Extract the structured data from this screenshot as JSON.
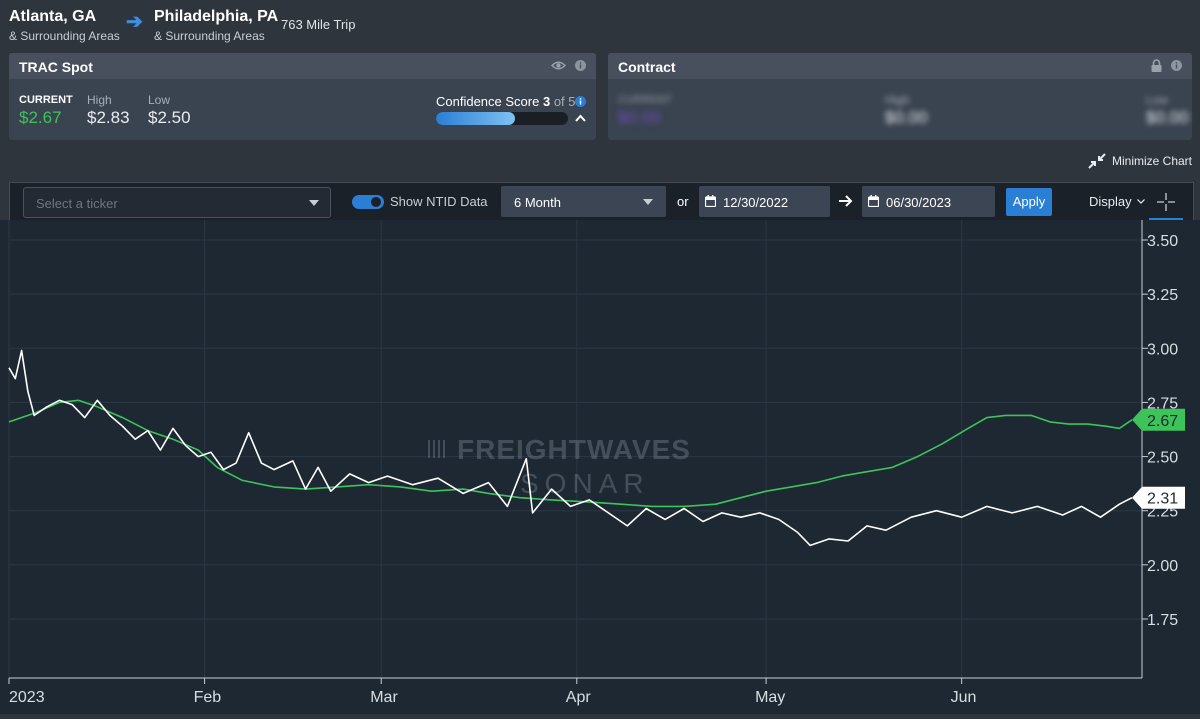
{
  "route": {
    "origin": "Atlanta, GA",
    "origin_sub": "& Surrounding Areas",
    "destination": "Philadelphia, PA",
    "destination_sub": "& Surrounding Areas",
    "trip": "763 Mile Trip"
  },
  "trac_spot": {
    "title": "TRAC Spot",
    "current_label": "CURRENT",
    "current": "$2.67",
    "high_label": "High",
    "high": "$2.83",
    "low_label": "Low",
    "low": "$2.50",
    "confidence_label": "Confidence Score",
    "confidence_score": "3",
    "confidence_of": "of 5",
    "confidence_fraction": 0.6
  },
  "contract": {
    "title": "Contract",
    "current_label": "CURRENT",
    "current": "$0.00",
    "high_label": "High",
    "high": "$0.00",
    "low_label": "Low",
    "low": "$0.00"
  },
  "minimize_label": "Minimize Chart",
  "controls": {
    "ticker_placeholder": "Select a ticker",
    "ntid_label": "Show NTID Data",
    "ntid_on": true,
    "range": "6 Month",
    "or": "or",
    "start_date": "12/30/2022",
    "end_date": "06/30/2023",
    "apply": "Apply",
    "display": "Display"
  },
  "watermark": {
    "line1": "FREIGHTWAVES",
    "line2": "SONAR"
  },
  "colors": {
    "green": "#3cc45b",
    "white": "#ffffff",
    "accent": "#2a7fd4",
    "bg": "#1e2833"
  },
  "chart_data": {
    "type": "line",
    "ylim": [
      1.5,
      3.6
    ],
    "yticks": [
      "3.50",
      "3.25",
      "3.00",
      "2.75",
      "2.50",
      "2.25",
      "2.00",
      "1.75"
    ],
    "xticks": [
      "2023",
      "Feb",
      "Mar",
      "Apr",
      "May",
      "Jun"
    ],
    "xtick_dates": [
      "2023-01-01",
      "2023-02-01",
      "2023-03-01",
      "2023-04-01",
      "2023-05-01",
      "2023-06-01"
    ],
    "x_range": [
      "2023-01-01",
      "2023-06-28"
    ],
    "series": [
      {
        "color": "#3cc45b",
        "last_label": "2.67",
        "points": [
          [
            "2023-01-01",
            2.66
          ],
          [
            "2023-01-05",
            2.7
          ],
          [
            "2023-01-09",
            2.75
          ],
          [
            "2023-01-12",
            2.76
          ],
          [
            "2023-01-15",
            2.73
          ],
          [
            "2023-01-19",
            2.68
          ],
          [
            "2023-01-23",
            2.62
          ],
          [
            "2023-01-27",
            2.58
          ],
          [
            "2023-01-31",
            2.53
          ],
          [
            "2023-02-03",
            2.45
          ],
          [
            "2023-02-07",
            2.39
          ],
          [
            "2023-02-12",
            2.36
          ],
          [
            "2023-02-17",
            2.35
          ],
          [
            "2023-02-22",
            2.36
          ],
          [
            "2023-02-27",
            2.37
          ],
          [
            "2023-03-04",
            2.36
          ],
          [
            "2023-03-09",
            2.34
          ],
          [
            "2023-03-14",
            2.35
          ],
          [
            "2023-03-18",
            2.33
          ],
          [
            "2023-03-23",
            2.31
          ],
          [
            "2023-03-28",
            2.3
          ],
          [
            "2023-04-03",
            2.29
          ],
          [
            "2023-04-08",
            2.28
          ],
          [
            "2023-04-13",
            2.27
          ],
          [
            "2023-04-18",
            2.27
          ],
          [
            "2023-04-23",
            2.28
          ],
          [
            "2023-04-27",
            2.31
          ],
          [
            "2023-05-01",
            2.34
          ],
          [
            "2023-05-05",
            2.36
          ],
          [
            "2023-05-09",
            2.38
          ],
          [
            "2023-05-13",
            2.41
          ],
          [
            "2023-05-17",
            2.43
          ],
          [
            "2023-05-21",
            2.45
          ],
          [
            "2023-05-25",
            2.5
          ],
          [
            "2023-05-29",
            2.56
          ],
          [
            "2023-06-02",
            2.63
          ],
          [
            "2023-06-05",
            2.68
          ],
          [
            "2023-06-08",
            2.69
          ],
          [
            "2023-06-12",
            2.69
          ],
          [
            "2023-06-15",
            2.66
          ],
          [
            "2023-06-18",
            2.65
          ],
          [
            "2023-06-21",
            2.65
          ],
          [
            "2023-06-24",
            2.64
          ],
          [
            "2023-06-26",
            2.63
          ],
          [
            "2023-06-28",
            2.67
          ]
        ]
      },
      {
        "color": "#ffffff",
        "last_label": "2.31",
        "points": [
          [
            "2023-01-01",
            2.91
          ],
          [
            "2023-01-02",
            2.86
          ],
          [
            "2023-01-03",
            2.99
          ],
          [
            "2023-01-04",
            2.8
          ],
          [
            "2023-01-05",
            2.69
          ],
          [
            "2023-01-07",
            2.73
          ],
          [
            "2023-01-09",
            2.76
          ],
          [
            "2023-01-11",
            2.74
          ],
          [
            "2023-01-13",
            2.68
          ],
          [
            "2023-01-15",
            2.76
          ],
          [
            "2023-01-17",
            2.69
          ],
          [
            "2023-01-19",
            2.64
          ],
          [
            "2023-01-21",
            2.58
          ],
          [
            "2023-01-23",
            2.62
          ],
          [
            "2023-01-25",
            2.53
          ],
          [
            "2023-01-27",
            2.63
          ],
          [
            "2023-01-29",
            2.55
          ],
          [
            "2023-01-31",
            2.5
          ],
          [
            "2023-02-02",
            2.52
          ],
          [
            "2023-02-04",
            2.44
          ],
          [
            "2023-02-06",
            2.47
          ],
          [
            "2023-02-08",
            2.61
          ],
          [
            "2023-02-10",
            2.47
          ],
          [
            "2023-02-12",
            2.44
          ],
          [
            "2023-02-15",
            2.48
          ],
          [
            "2023-02-17",
            2.35
          ],
          [
            "2023-02-19",
            2.45
          ],
          [
            "2023-02-21",
            2.34
          ],
          [
            "2023-02-24",
            2.42
          ],
          [
            "2023-02-27",
            2.38
          ],
          [
            "2023-03-02",
            2.41
          ],
          [
            "2023-03-06",
            2.37
          ],
          [
            "2023-03-10",
            2.4
          ],
          [
            "2023-03-14",
            2.33
          ],
          [
            "2023-03-18",
            2.38
          ],
          [
            "2023-03-21",
            2.27
          ],
          [
            "2023-03-24",
            2.49
          ],
          [
            "2023-03-25",
            2.24
          ],
          [
            "2023-03-28",
            2.35
          ],
          [
            "2023-03-31",
            2.27
          ],
          [
            "2023-04-03",
            2.3
          ],
          [
            "2023-04-06",
            2.24
          ],
          [
            "2023-04-09",
            2.18
          ],
          [
            "2023-04-12",
            2.26
          ],
          [
            "2023-04-15",
            2.21
          ],
          [
            "2023-04-18",
            2.26
          ],
          [
            "2023-04-21",
            2.2
          ],
          [
            "2023-04-24",
            2.24
          ],
          [
            "2023-04-27",
            2.22
          ],
          [
            "2023-04-30",
            2.24
          ],
          [
            "2023-05-03",
            2.21
          ],
          [
            "2023-05-06",
            2.15
          ],
          [
            "2023-05-08",
            2.09
          ],
          [
            "2023-05-11",
            2.12
          ],
          [
            "2023-05-14",
            2.11
          ],
          [
            "2023-05-17",
            2.18
          ],
          [
            "2023-05-20",
            2.16
          ],
          [
            "2023-05-24",
            2.22
          ],
          [
            "2023-05-28",
            2.25
          ],
          [
            "2023-06-01",
            2.22
          ],
          [
            "2023-06-05",
            2.27
          ],
          [
            "2023-06-09",
            2.24
          ],
          [
            "2023-06-13",
            2.27
          ],
          [
            "2023-06-17",
            2.23
          ],
          [
            "2023-06-20",
            2.27
          ],
          [
            "2023-06-23",
            2.22
          ],
          [
            "2023-06-26",
            2.28
          ],
          [
            "2023-06-28",
            2.31
          ]
        ]
      }
    ]
  }
}
